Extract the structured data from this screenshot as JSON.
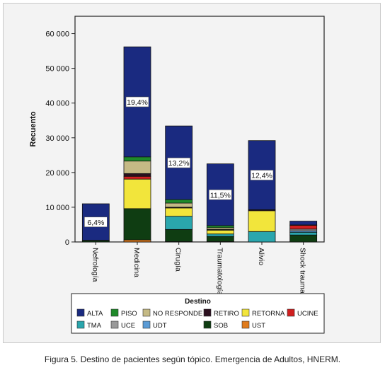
{
  "caption": "Figura 5. Destino de pacientes según tópico. Emergencia de Adultos, HNERM.",
  "chart_data": {
    "type": "bar",
    "stacked": true,
    "ylabel": "Recuento",
    "xlabel": "",
    "ylim": [
      0,
      65000
    ],
    "yticks": [
      0,
      10000,
      20000,
      30000,
      40000,
      50000,
      60000
    ],
    "ytick_labels": [
      "0",
      "10 000",
      "20 000",
      "30 000",
      "40 000",
      "50 000",
      "60 000"
    ],
    "grid": false,
    "categories": [
      "Nefrología",
      "Medicina",
      "Cirugía",
      "Traumatología",
      "Alivio",
      "Shock trauma"
    ],
    "data_labels": [
      "6,4%",
      "",
      "13,2%",
      "11,5%",
      "12,4%",
      ""
    ],
    "data_labels_placed": [
      "6,4%",
      "19,4%",
      "13,2%",
      "11,5%",
      "12,4%",
      ""
    ],
    "legend": {
      "title": "Destino",
      "position": "bottom"
    },
    "series": [
      {
        "name": "UST",
        "color": "#e07b1c",
        "values": [
          0,
          600,
          100,
          100,
          0,
          0
        ]
      },
      {
        "name": "SOB",
        "color": "#0f3d12",
        "values": [
          400,
          9000,
          3500,
          1500,
          0,
          2000
        ]
      },
      {
        "name": "TMA",
        "color": "#2aa6ad",
        "values": [
          0,
          0,
          3800,
          700,
          3000,
          800
        ]
      },
      {
        "name": "UDT",
        "color": "#5b9bd5",
        "values": [
          0,
          0,
          0,
          0,
          0,
          400
        ]
      },
      {
        "name": "UCE",
        "color": "#9a9a9a",
        "values": [
          0,
          0,
          0,
          0,
          0,
          500
        ]
      },
      {
        "name": "RETORNA",
        "color": "#f2e53b",
        "values": [
          0,
          8500,
          2400,
          1100,
          6000,
          0
        ]
      },
      {
        "name": "UCINE",
        "color": "#d01f1f",
        "values": [
          0,
          800,
          0,
          0,
          0,
          1100
        ]
      },
      {
        "name": "RETIRO",
        "color": "#2b0f1e",
        "values": [
          0,
          800,
          200,
          200,
          300,
          100
        ]
      },
      {
        "name": "NO RESPONDE",
        "color": "#c5ba85",
        "values": [
          0,
          3600,
          1200,
          500,
          0,
          0
        ]
      },
      {
        "name": "PISO",
        "color": "#1f8a2a",
        "values": [
          100,
          1200,
          1000,
          600,
          0,
          0
        ]
      },
      {
        "name": "ALTA",
        "color": "#1a2a80",
        "values": [
          10500,
          31700,
          21200,
          17800,
          19900,
          1100
        ]
      }
    ]
  },
  "legend_items": [
    {
      "label": "ALTA",
      "color": "#1a2a80"
    },
    {
      "label": "PISO",
      "color": "#1f8a2a"
    },
    {
      "label": "NO RESPONDE",
      "color": "#c5ba85"
    },
    {
      "label": "RETIRO",
      "color": "#2b0f1e"
    },
    {
      "label": "RETORNA",
      "color": "#f2e53b"
    },
    {
      "label": "UCINE",
      "color": "#d01f1f"
    },
    {
      "label": "TMA",
      "color": "#2aa6ad"
    },
    {
      "label": "UCE",
      "color": "#9a9a9a"
    },
    {
      "label": "UDT",
      "color": "#5b9bd5"
    },
    {
      "label": "SOB",
      "color": "#0f3d12"
    },
    {
      "label": "UST",
      "color": "#e07b1c"
    }
  ]
}
